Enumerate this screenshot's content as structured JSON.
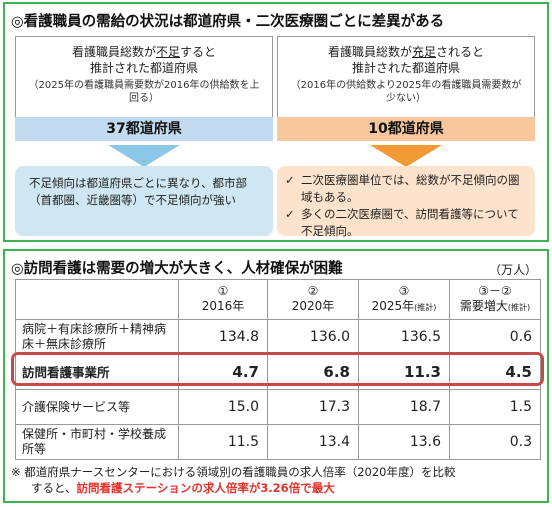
{
  "supply": {
    "title": "◎看護職員の需給の状況は都道府県・二次医療圏ごとに差異がある",
    "left": {
      "line1_pre": "看護職員総数が",
      "line1_u": "不足",
      "line1_post": "すると",
      "line2": "推計された都道府県",
      "note": "（2025年の看護職員需要数が2016年の供給数を上回る）",
      "count": "37都道府県",
      "detail": "不足傾向は都道府県ごとに異なり、都市部（首都圏、近畿圏等）で不足傾向が強い"
    },
    "right": {
      "line1_pre": "看護職員総数が",
      "line1_u": "充足",
      "line1_post": "されると",
      "line2": "推計された都道府県",
      "note": "（2016年の供給数より2025年の看護職員需要数が少ない）",
      "count": "10都道府県",
      "bullets": [
        "二次医療圏単位では、総数が不足傾向の圏域もある。",
        "多くの二次医療圏で、訪問看護等について不足傾向。"
      ]
    }
  },
  "visiting": {
    "title": "◎訪問看護は需要の増大が大きく、人材確保が困難",
    "unit": "（万人）",
    "columns": [
      {
        "num": "①",
        "label": "2016年",
        "suffix": ""
      },
      {
        "num": "②",
        "label": "2020年",
        "suffix": ""
      },
      {
        "num": "③",
        "label": "2025年",
        "suffix": "(推計)"
      },
      {
        "num": "③－②",
        "label": "需要増大",
        "suffix": "(推計)"
      }
    ],
    "rows": [
      {
        "label": "病院＋有床診療所＋精神病床＋無床診療所",
        "values": [
          "134.8",
          "136.0",
          "136.5",
          "0.6"
        ]
      },
      {
        "label": "訪問看護事業所",
        "values": [
          "4.7",
          "6.8",
          "11.3",
          "4.5"
        ]
      },
      {
        "label": "介護保険サービス等",
        "values": [
          "15.0",
          "17.3",
          "18.7",
          "1.5"
        ]
      },
      {
        "label": "保健所・市町村・学校養成所等",
        "values": [
          "11.5",
          "13.4",
          "13.6",
          "0.3"
        ]
      }
    ],
    "footnote_line1": "※ 都道府県ナースセンターにおける領域別の看護職員の求人倍率（2020年度）を比較",
    "footnote_line2_pre": "すると、",
    "footnote_line2_red": "訪問看護ステーションの求人倍率が3.26倍で最大"
  },
  "colors": {
    "frame": "#3fb34f",
    "band_left": "#c2dbf0",
    "band_right": "#f8c69c",
    "arrow_left": "#8cc7e8",
    "arrow_right": "#f29a36",
    "note_left": "#cfe7f3",
    "note_right": "#fde3cc",
    "highlight_border": "#c54a4a",
    "emphasis_text": "#e0342c"
  }
}
